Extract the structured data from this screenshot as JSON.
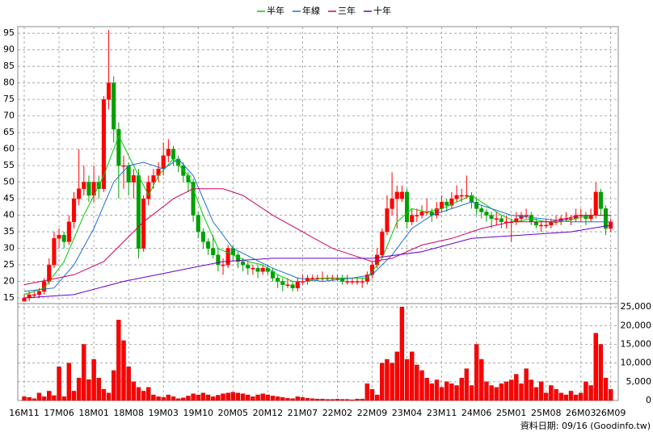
{
  "chart_data": [
    {
      "type": "candlestick",
      "categories": [
        "16M11",
        null,
        null,
        null,
        null,
        null,
        null,
        "17M06",
        null,
        null,
        null,
        null,
        null,
        null,
        "18M01",
        null,
        null,
        null,
        null,
        null,
        null,
        "18M08",
        null,
        null,
        null,
        null,
        null,
        null,
        "19M03",
        null,
        null,
        null,
        null,
        null,
        null,
        "19M10",
        null,
        null,
        null,
        null,
        null,
        null,
        "20M05",
        null,
        null,
        null,
        null,
        null,
        null,
        "20M12",
        null,
        null,
        null,
        null,
        null,
        null,
        "21M07",
        null,
        null,
        null,
        null,
        null,
        null,
        "22M02",
        null,
        null,
        null,
        null,
        null,
        null,
        "22M09",
        null,
        null,
        null,
        null,
        null,
        null,
        "23M04",
        null,
        null,
        null,
        null,
        null,
        null,
        "23M11",
        null,
        null,
        null,
        null,
        null,
        null,
        "24M06",
        null,
        null,
        null,
        null,
        null,
        null,
        "25M01",
        null,
        null,
        null,
        null,
        null,
        null,
        "25M08",
        null,
        null,
        null,
        null,
        null,
        null,
        "26M03",
        null,
        null,
        null,
        null,
        null,
        "26M09"
      ],
      "ohlc": [
        [
          14,
          16,
          14,
          15
        ],
        [
          15,
          17,
          14,
          16
        ],
        [
          16,
          17,
          15,
          16
        ],
        [
          16,
          18,
          15,
          17
        ],
        [
          17,
          21,
          16,
          20
        ],
        [
          20,
          27,
          19,
          25
        ],
        [
          25,
          35,
          24,
          33
        ],
        [
          33,
          36,
          30,
          34
        ],
        [
          34,
          35,
          30,
          32
        ],
        [
          32,
          40,
          31,
          38
        ],
        [
          38,
          47,
          36,
          45
        ],
        [
          45,
          60,
          43,
          48
        ],
        [
          48,
          55,
          46,
          50
        ],
        [
          50,
          52,
          44,
          46
        ],
        [
          46,
          55,
          44,
          50
        ],
        [
          50,
          52,
          45,
          48
        ],
        [
          48,
          76,
          47,
          75
        ],
        [
          75,
          96,
          72,
          80
        ],
        [
          80,
          82,
          62,
          66
        ],
        [
          66,
          68,
          45,
          55
        ],
        [
          55,
          58,
          48,
          55
        ],
        [
          55,
          56,
          46,
          50
        ],
        [
          50,
          54,
          45,
          52
        ],
        [
          52,
          54,
          27,
          30
        ],
        [
          30,
          46,
          29,
          45
        ],
        [
          45,
          52,
          43,
          50
        ],
        [
          50,
          54,
          48,
          52
        ],
        [
          52,
          56,
          50,
          54
        ],
        [
          54,
          62,
          52,
          58
        ],
        [
          58,
          63,
          56,
          60
        ],
        [
          60,
          61,
          55,
          57
        ],
        [
          57,
          58,
          53,
          55
        ],
        [
          55,
          56,
          50,
          52
        ],
        [
          52,
          53,
          47,
          50
        ],
        [
          50,
          51,
          38,
          40
        ],
        [
          40,
          41,
          33,
          35
        ],
        [
          35,
          36,
          30,
          32
        ],
        [
          32,
          33,
          28,
          30
        ],
        [
          30,
          34,
          27,
          28
        ],
        [
          28,
          30,
          23,
          25
        ],
        [
          25,
          27,
          22,
          25
        ],
        [
          25,
          31,
          24,
          30
        ],
        [
          30,
          31,
          26,
          28
        ],
        [
          28,
          29,
          24,
          26
        ],
        [
          26,
          27,
          23,
          25
        ],
        [
          25,
          26,
          22,
          24
        ],
        [
          24,
          25,
          22,
          24
        ],
        [
          24,
          25,
          21,
          23
        ],
        [
          23,
          25,
          22,
          24
        ],
        [
          24,
          25,
          22,
          23
        ],
        [
          23,
          24,
          20,
          21
        ],
        [
          21,
          22,
          18,
          20
        ],
        [
          20,
          21,
          17,
          19
        ],
        [
          19,
          21,
          18,
          19
        ],
        [
          19,
          20,
          17,
          18
        ],
        [
          18,
          21,
          17,
          20
        ],
        [
          20,
          22,
          19,
          20
        ],
        [
          20,
          22,
          19,
          21
        ],
        [
          21,
          22,
          20,
          21
        ],
        [
          21,
          22,
          20,
          21
        ],
        [
          21,
          23,
          20,
          21
        ],
        [
          21,
          22,
          20,
          21
        ],
        [
          21,
          22,
          20,
          21
        ],
        [
          21,
          22,
          20,
          21
        ],
        [
          21,
          22,
          19,
          20
        ],
        [
          20,
          22,
          19,
          20
        ],
        [
          20,
          21,
          19,
          20
        ],
        [
          20,
          21,
          19,
          20
        ],
        [
          20,
          21,
          18,
          20
        ],
        [
          20,
          23,
          19,
          22
        ],
        [
          22,
          26,
          21,
          25
        ],
        [
          25,
          30,
          24,
          28
        ],
        [
          28,
          36,
          27,
          35
        ],
        [
          35,
          46,
          34,
          42
        ],
        [
          42,
          53,
          40,
          45
        ],
        [
          45,
          49,
          36,
          47
        ],
        [
          45,
          49,
          44,
          47
        ],
        [
          47,
          48,
          36,
          38
        ],
        [
          38,
          42,
          37,
          40
        ],
        [
          40,
          42,
          38,
          40
        ],
        [
          40,
          43,
          39,
          41
        ],
        [
          41,
          45,
          40,
          41
        ],
        [
          41,
          42,
          38,
          40
        ],
        [
          40,
          44,
          39,
          42
        ],
        [
          42,
          46,
          41,
          44
        ],
        [
          44,
          45,
          41,
          43
        ],
        [
          43,
          47,
          42,
          45
        ],
        [
          45,
          49,
          44,
          46
        ],
        [
          46,
          48,
          44,
          46
        ],
        [
          46,
          52,
          45,
          46
        ],
        [
          46,
          47,
          42,
          44
        ],
        [
          44,
          45,
          40,
          42
        ],
        [
          42,
          43,
          39,
          41
        ],
        [
          41,
          42,
          38,
          40
        ],
        [
          40,
          41,
          36,
          39
        ],
        [
          39,
          41,
          37,
          39
        ],
        [
          39,
          40,
          36,
          38
        ],
        [
          38,
          40,
          36,
          38
        ],
        [
          38,
          39,
          32,
          38
        ],
        [
          38,
          41,
          37,
          39
        ],
        [
          39,
          41,
          38,
          40
        ],
        [
          40,
          42,
          39,
          40
        ],
        [
          40,
          41,
          37,
          38
        ],
        [
          38,
          39,
          36,
          37
        ],
        [
          37,
          38,
          35,
          37
        ],
        [
          37,
          39,
          36,
          37
        ],
        [
          37,
          39,
          36,
          38
        ],
        [
          38,
          40,
          37,
          38
        ],
        [
          38,
          40,
          37,
          39
        ],
        [
          39,
          41,
          38,
          39
        ],
        [
          39,
          40,
          37,
          39
        ],
        [
          39,
          42,
          38,
          40
        ],
        [
          40,
          42,
          38,
          40
        ],
        [
          40,
          41,
          37,
          39
        ],
        [
          39,
          42,
          38,
          40
        ],
        [
          40,
          50,
          39,
          47
        ],
        [
          47,
          48,
          40,
          42
        ],
        [
          42,
          43,
          34,
          36
        ],
        [
          36,
          39,
          35,
          38
        ]
      ],
      "up_color": "#ff0000",
      "down_color": "#00a000",
      "ylim": [
        13.3,
        97
      ],
      "yticks": [
        15,
        20,
        25,
        30,
        35,
        40,
        45,
        50,
        55,
        60,
        65,
        70,
        75,
        80,
        85,
        90,
        95
      ],
      "grid": true,
      "series": [
        {
          "name": "半年",
          "color": "#00cc00",
          "x": [
            0,
            4,
            8,
            12,
            16,
            19,
            22,
            25,
            27,
            30,
            33,
            36,
            39,
            42,
            45,
            48,
            51,
            54,
            57,
            60,
            63,
            66,
            69,
            72,
            75,
            78,
            81,
            84,
            87,
            90,
            93,
            96,
            99,
            102,
            105,
            108,
            111,
            114,
            118
          ],
          "values": [
            16,
            18,
            26,
            40,
            52,
            64,
            55,
            46,
            52,
            57,
            52,
            40,
            30,
            28,
            26,
            25,
            22,
            20,
            20,
            21,
            21,
            21,
            21,
            27,
            38,
            42,
            41,
            42,
            44,
            46,
            43,
            40,
            38,
            39,
            38,
            38,
            39,
            40,
            40
          ]
        },
        {
          "name": "年線",
          "color": "#1e6fd0",
          "x": [
            0,
            6,
            10,
            14,
            18,
            21,
            24,
            28,
            31,
            34,
            38,
            42,
            46,
            50,
            55,
            60,
            66,
            70,
            74,
            78,
            82,
            86,
            90,
            94,
            98,
            104,
            110,
            118
          ],
          "values": [
            17,
            18,
            25,
            36,
            50,
            55,
            56,
            54,
            57,
            52,
            38,
            30,
            27,
            24,
            21,
            20,
            21,
            22,
            28,
            36,
            40,
            42,
            44,
            42,
            40,
            39,
            38,
            38
          ]
        },
        {
          "name": "三年",
          "color": "#cc0066",
          "x": [
            0,
            10,
            16,
            20,
            24,
            30,
            34,
            40,
            44,
            50,
            56,
            62,
            66,
            70,
            74,
            80,
            86,
            92,
            98,
            106,
            112,
            118
          ],
          "values": [
            19,
            22,
            26,
            32,
            38,
            45,
            48,
            48,
            46,
            40,
            35,
            30,
            28,
            26,
            27,
            31,
            33,
            36,
            38,
            38,
            40,
            40
          ]
        },
        {
          "name": "十年",
          "color": "#6600cc",
          "x": [
            0,
            10,
            20,
            30,
            40,
            50,
            60,
            70,
            80,
            90,
            100,
            110,
            118
          ],
          "values": [
            15,
            16,
            20,
            23,
            26,
            27,
            27,
            27,
            29,
            33,
            34,
            35,
            37
          ]
        }
      ]
    },
    {
      "type": "bar",
      "color": "#ff0000",
      "values": [
        1000,
        800,
        500,
        2000,
        1000,
        2500,
        1300,
        9000,
        1000,
        10000,
        2500,
        6000,
        15000,
        5600,
        11000,
        6000,
        3000,
        2000,
        8000,
        21500,
        16000,
        9000,
        5000,
        3500,
        2500,
        3500,
        1500,
        1000,
        800,
        1500,
        1000,
        500,
        700,
        1200,
        1800,
        1500,
        2000,
        1500,
        1000,
        1400,
        1800,
        2000,
        2200,
        2000,
        1800,
        1500,
        1000,
        1500,
        1800,
        1500,
        1200,
        1000,
        800,
        600,
        500,
        1000,
        800,
        600,
        500,
        400,
        400,
        300,
        300,
        400,
        300,
        300,
        200,
        400,
        400,
        4500,
        3000,
        1500,
        10000,
        11000,
        10000,
        13000,
        25000,
        11000,
        13000,
        9500,
        8000,
        6000,
        4500,
        5500,
        3500,
        5000,
        4500,
        4000,
        6000,
        8500,
        4000,
        15000,
        11000,
        5000,
        4000,
        3500,
        4500,
        5000,
        5500,
        7000,
        4500,
        8500,
        5500,
        3500,
        5000,
        2000,
        4000,
        3000,
        2000,
        1500,
        2500,
        1500,
        2000,
        5000,
        4000,
        18000,
        15000,
        6000,
        3000
      ],
      "ylim": [
        0,
        25900
      ],
      "yticks": [
        0,
        {
          "value": 5000,
          "label": "5,000"
        },
        {
          "value": 10000,
          "label": "10,000"
        },
        {
          "value": 15000,
          "label": "15,000"
        },
        {
          "value": 20000,
          "label": "20,000"
        },
        {
          "value": 25000,
          "label": "25,000"
        }
      ]
    }
  ],
  "footer": "資料日期: 09/16 (Goodinfo.tw)"
}
